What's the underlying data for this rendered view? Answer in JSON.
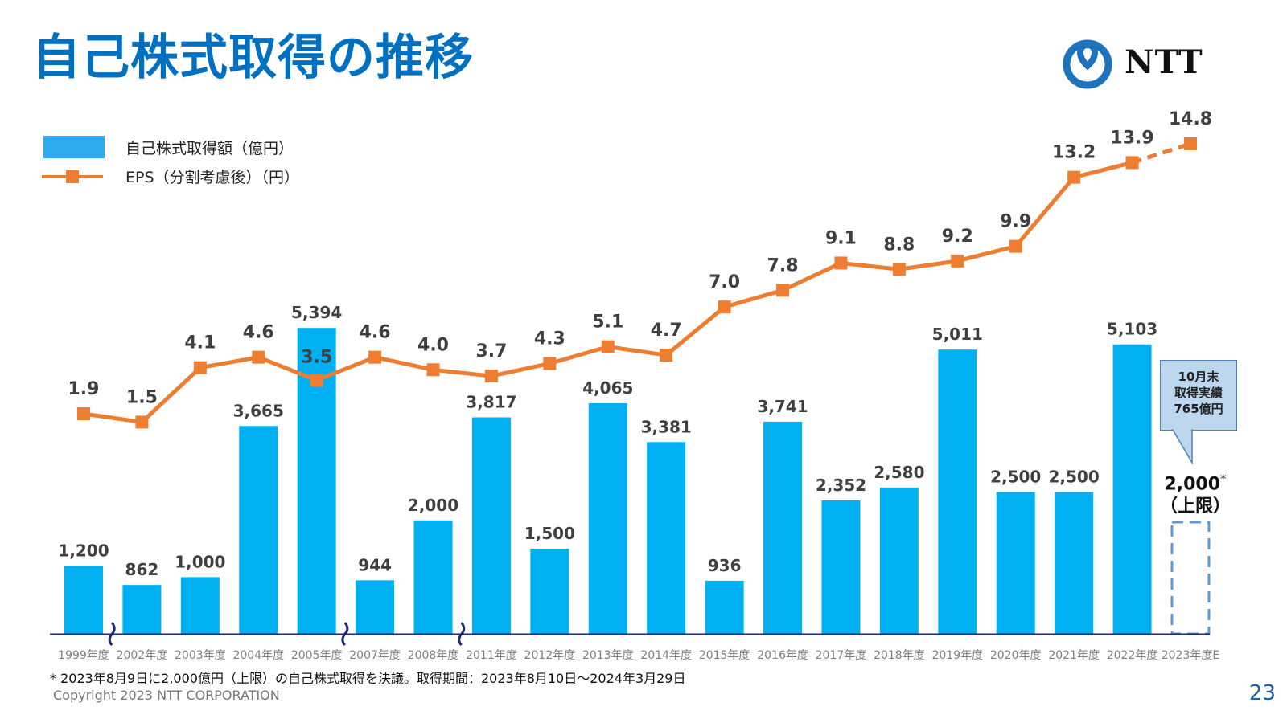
{
  "page": {
    "title": "自己株式取得の推移",
    "logo_text": "NTT",
    "footnote": "* 2023年8月9日に2,000億円（上限）の自己株式取得を決議。取得期間：2023年8月10日～2024年3月29日",
    "copyright": "Copyright  2023 NTT CORPORATION",
    "page_number": "23"
  },
  "legend": {
    "bar_label": "自己株式取得額（億円）",
    "line_label": "EPS（分割考慮後）（円）"
  },
  "callout": {
    "line1": "10月末",
    "line2": "取得実績",
    "line3": "765億円"
  },
  "estimate": {
    "value_label": "2,000",
    "asterisk": "*",
    "cap_label": "（上限）"
  },
  "colors": {
    "title": "#0070c0",
    "bar": "#00b0f0",
    "line": "#ed7d31",
    "axis": "#1f2a6e",
    "estimate_border": "#5b9bd5"
  },
  "chart_data": {
    "type": "bar",
    "title": "自己株式取得の推移",
    "xlabel": "",
    "ylabel": "",
    "categories": [
      "1999年度",
      "2002年度",
      "2003年度",
      "2004年度",
      "2005年度",
      "2007年度",
      "2008年度",
      "2011年度",
      "2012年度",
      "2013年度",
      "2014年度",
      "2015年度",
      "2016年度",
      "2017年度",
      "2018年度",
      "2019年度",
      "2020年度",
      "2021年度",
      "2022年度",
      "2023年度E"
    ],
    "axis_breaks_after": [
      "1999年度",
      "2005年度",
      "2008年度"
    ],
    "series": [
      {
        "name": "自己株式取得額（億円）",
        "type": "bar",
        "values": [
          1200,
          862,
          1000,
          3665,
          5394,
          944,
          2000,
          3817,
          1500,
          4065,
          3381,
          936,
          3741,
          2352,
          2580,
          5011,
          2500,
          2500,
          5103,
          2000
        ],
        "labels": [
          "1,200",
          "862",
          "1,000",
          "3,665",
          "5,394",
          "944",
          "2,000",
          "3,817",
          "1,500",
          "4,065",
          "3,381",
          "936",
          "3,741",
          "2,352",
          "2,580",
          "5,011",
          "2,500",
          "2,500",
          "5,103",
          "2,000*（上限）"
        ],
        "estimate_last": true
      },
      {
        "name": "EPS（分割考慮後）（円）",
        "type": "line",
        "values": [
          1.9,
          1.5,
          4.1,
          4.6,
          3.5,
          4.6,
          4.0,
          3.7,
          4.3,
          5.1,
          4.7,
          7.0,
          7.8,
          9.1,
          8.8,
          9.2,
          9.9,
          13.2,
          13.9,
          14.8
        ],
        "labels": [
          "1.9",
          "1.5",
          "4.1",
          "4.6",
          "3.5",
          "4.6",
          "4.0",
          "3.7",
          "4.3",
          "5.1",
          "4.7",
          "7.0",
          "7.8",
          "9.1",
          "8.8",
          "9.2",
          "9.9",
          "13.2",
          "13.9",
          "14.8"
        ],
        "estimate_last": true
      }
    ],
    "legend_position": "top-left",
    "grid": false,
    "y_axis_visible": false
  }
}
